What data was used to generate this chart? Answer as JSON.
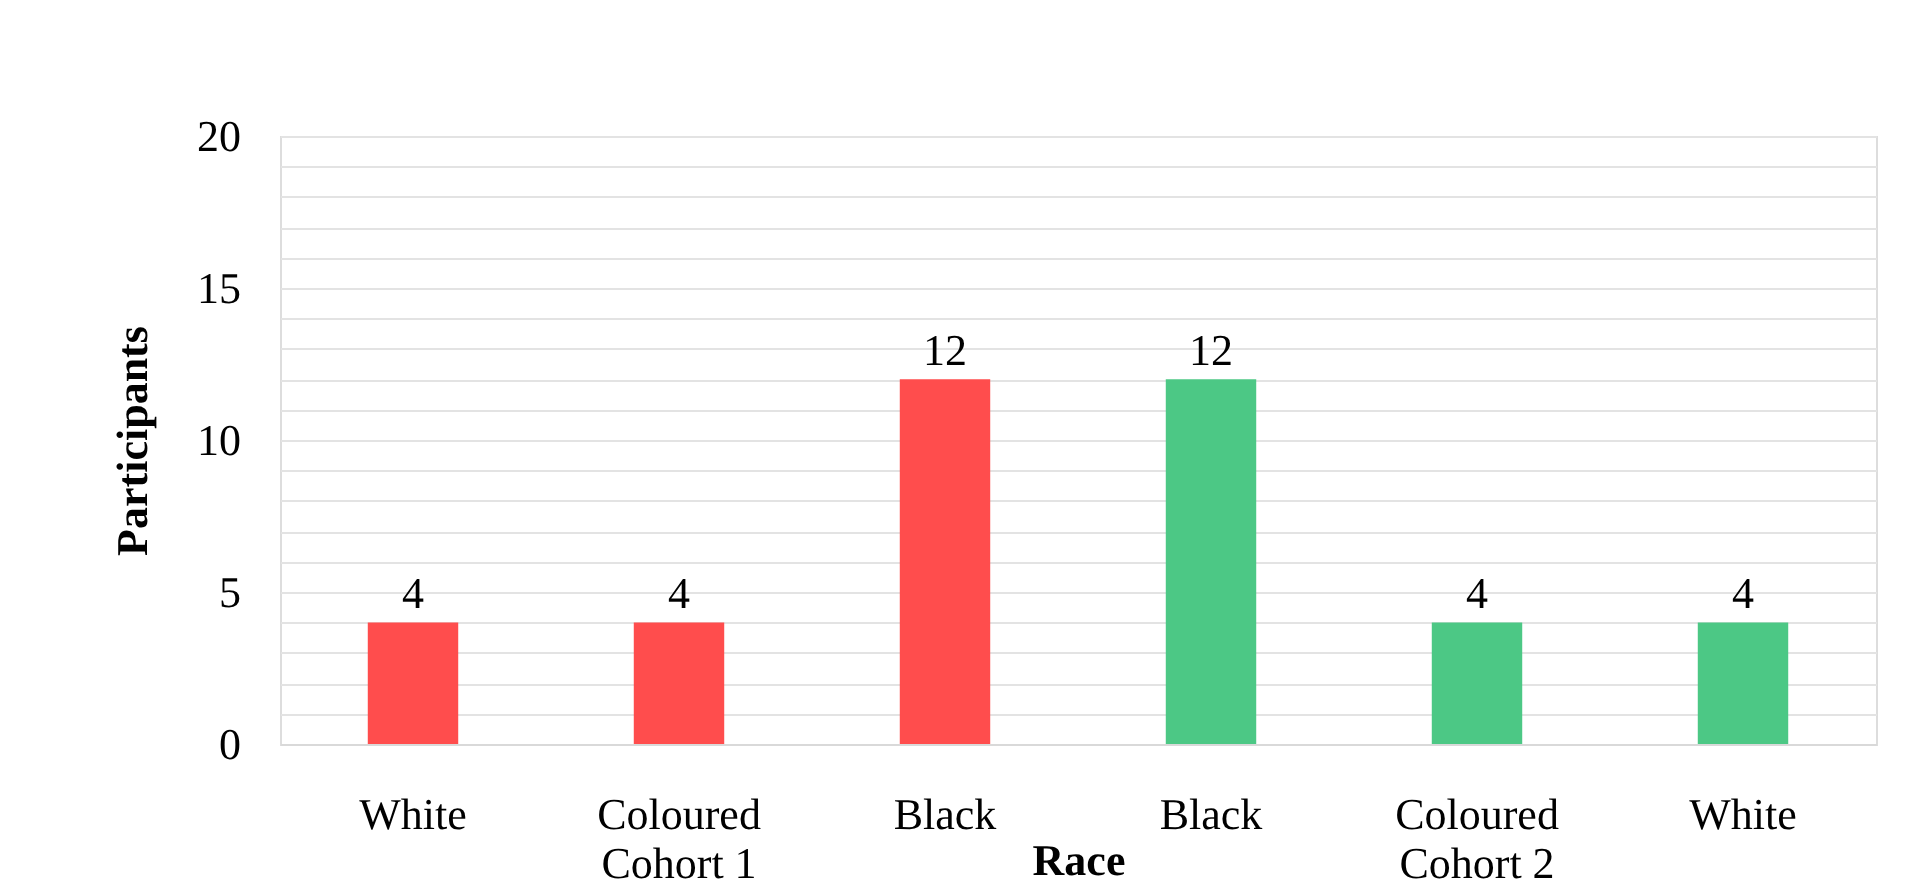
{
  "chart_data": {
    "type": "bar",
    "xlabel": "Race",
    "ylabel": "Participants",
    "categories": [
      "White",
      "Coloured",
      "Black",
      "Black",
      "Coloured",
      "White"
    ],
    "series": [
      {
        "name": "Cohort 1",
        "color": "#ff4d4d",
        "values": [
          4,
          4,
          12,
          null,
          null,
          null
        ]
      },
      {
        "name": "Cohort 2",
        "color": "#4cc885",
        "values": [
          null,
          null,
          null,
          12,
          4,
          4
        ]
      }
    ],
    "ylim": [
      0,
      20
    ],
    "yticks": [
      0,
      {
        "value": 1,
        "label": null
      },
      {
        "value": 2,
        "label": null
      },
      {
        "value": 3,
        "label": null
      },
      {
        "value": 4,
        "label": null
      },
      5,
      {
        "value": 6,
        "label": null
      },
      {
        "value": 7,
        "label": null
      },
      {
        "value": 8,
        "label": null
      },
      {
        "value": 9,
        "label": null
      },
      10,
      {
        "value": 11,
        "label": null
      },
      {
        "value": 12,
        "label": null
      },
      {
        "value": 13,
        "label": null
      },
      {
        "value": 14,
        "label": null
      },
      15,
      {
        "value": 16,
        "label": null
      },
      {
        "value": 17,
        "label": null
      },
      {
        "value": 18,
        "label": null
      },
      {
        "value": 19,
        "label": null
      },
      20
    ],
    "grid": true,
    "data_labels": true,
    "legend": false
  }
}
